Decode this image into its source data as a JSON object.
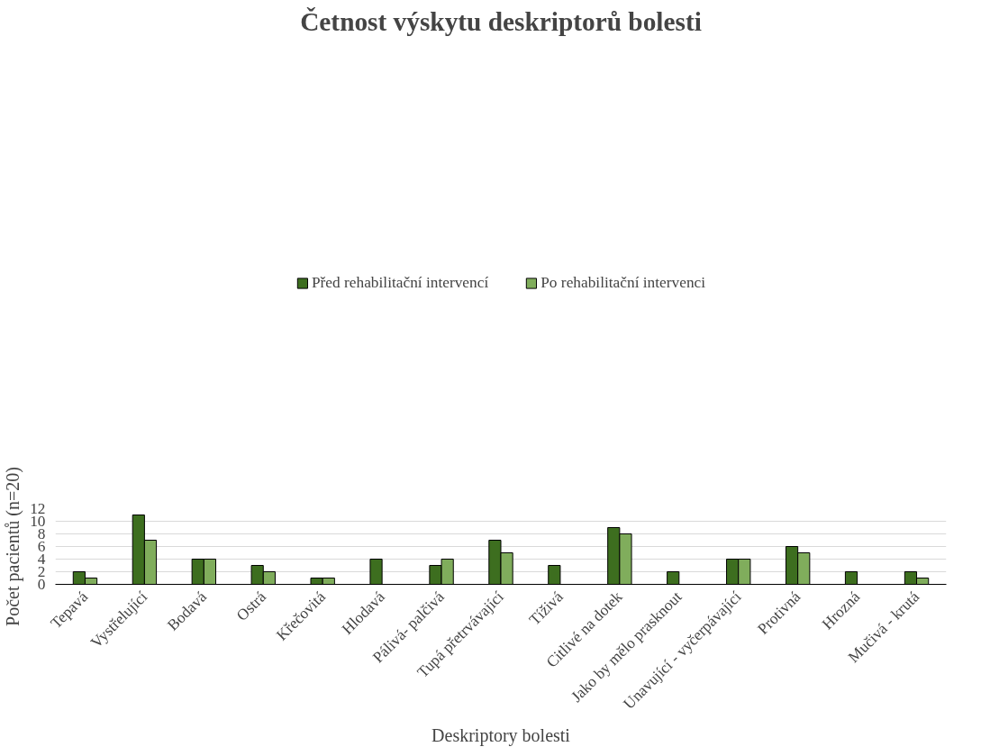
{
  "chart_data": {
    "type": "bar",
    "title": "Četnost výskytu deskriptorů bolesti",
    "xlabel": "Deskriptory bolesti",
    "ylabel": "Počet pacientů (n=20)",
    "categories": [
      "Tepavá",
      "Vystřelující",
      "Bodavá",
      "Ostrá",
      "Křečovitá",
      "Hlodavá",
      "Pálivá- palčivá",
      "Tupá přetrvávající",
      "Tíživá",
      "Citlivé na dotek",
      "Jako by mělo prasknout",
      "Unavující - vyčerpávající",
      "Protivná",
      "Hrozná",
      "Mučivá - krutá"
    ],
    "series": [
      {
        "name": "Před rehabilitační intervencí",
        "color": "#3d6e1f",
        "values": [
          2,
          11,
          4,
          3,
          1,
          4,
          3,
          7,
          3,
          9,
          2,
          4,
          6,
          2,
          2
        ]
      },
      {
        "name": "Po rehabilitační intervenci",
        "color": "#80ad5c",
        "values": [
          1,
          7,
          4,
          2,
          1,
          0,
          4,
          5,
          0,
          8,
          0,
          4,
          5,
          0,
          1
        ]
      }
    ],
    "ylim": [
      0,
      12
    ],
    "yticks": [
      0,
      2,
      4,
      6,
      8,
      10,
      12
    ],
    "grid": "y",
    "legend": "top"
  }
}
